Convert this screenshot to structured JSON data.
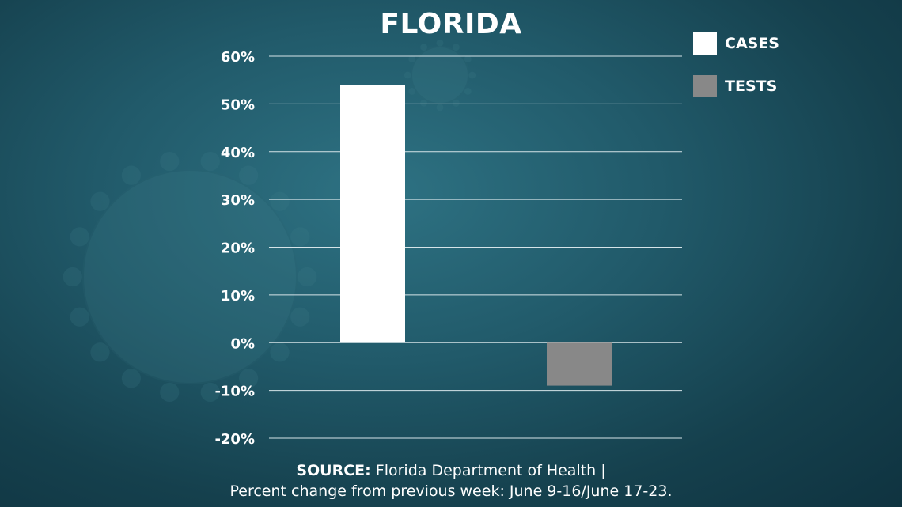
{
  "chart_data": {
    "type": "bar",
    "title": "FLORIDA",
    "categories": [
      "CASES",
      "TESTS"
    ],
    "values": [
      54,
      -9
    ],
    "colors": [
      "#ffffff",
      "#888888"
    ],
    "ylim": [
      -20,
      60
    ],
    "yticks": [
      60,
      50,
      40,
      30,
      20,
      10,
      0,
      -10,
      -20
    ],
    "ytick_labels": [
      "60%",
      "50%",
      "40%",
      "30%",
      "20%",
      "10%",
      "0%",
      "-10%",
      "-20%"
    ],
    "grid": true,
    "legend": {
      "placement": "top-right",
      "entries": [
        {
          "label": "CASES",
          "color": "#ffffff"
        },
        {
          "label": "TESTS",
          "color": "#888888"
        }
      ]
    }
  },
  "source": {
    "prefix": "SOURCE:",
    "text": " Florida Department of Health |",
    "line2": "Percent change from previous week: June 9-16/June 17-23."
  }
}
